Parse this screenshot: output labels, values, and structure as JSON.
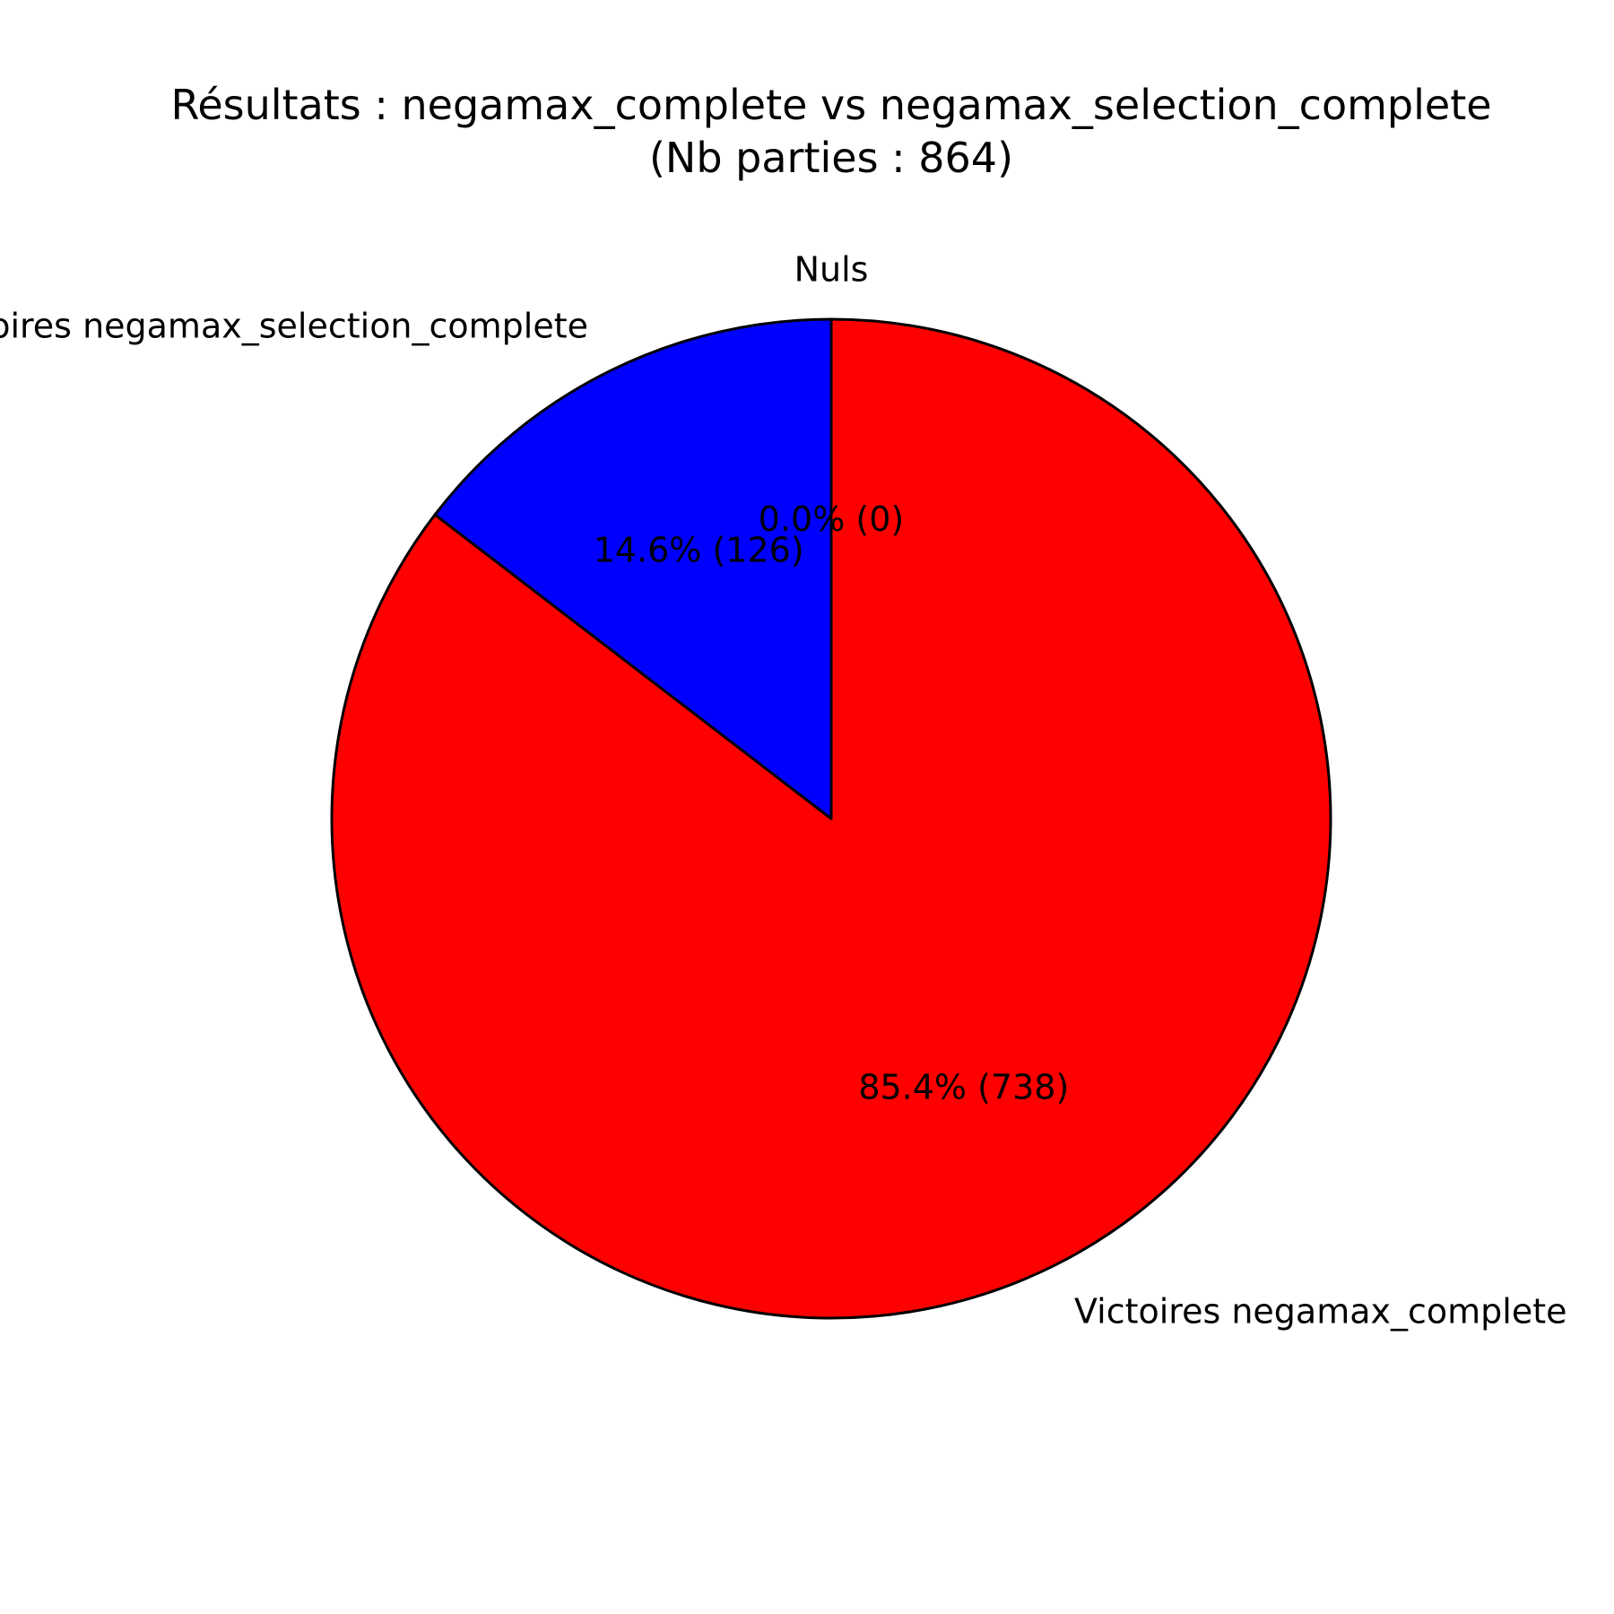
{
  "chart_data": {
    "type": "pie",
    "title": "Résultats : negamax_complete vs negamax_selection_complete",
    "subtitle": "(Nb parties : 864)",
    "categories": [
      "Victoires negamax_complete",
      "Victoires negamax_selection_complete",
      "Nuls"
    ],
    "values": [
      738,
      126,
      0
    ],
    "percent_labels": [
      "85.4% (738)",
      "14.6% (126)",
      "0.0% (0)"
    ],
    "colors": [
      "#ff0000",
      "#0000ff",
      "#00aa00"
    ],
    "edge_color": "#000000",
    "start_angle": 90,
    "direction": "clockwise"
  }
}
